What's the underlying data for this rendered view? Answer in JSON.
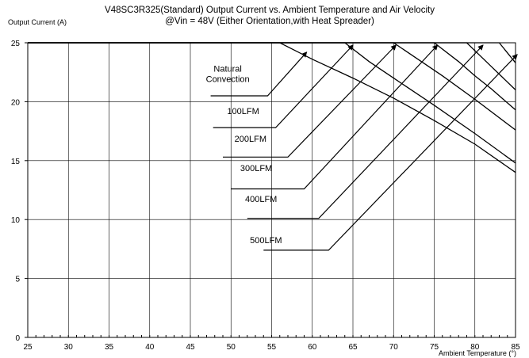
{
  "chart_data": {
    "type": "line",
    "title": "V48SC3R325(Standard) Output Current vs. Ambient Temperature and Air Velocity",
    "subtitle": "@Vin = 48V (Either Orientation,with Heat Spreader)",
    "ylabel": "Output Current (A)",
    "xlabel": "Ambient Temperature (°)",
    "xlim": [
      25,
      85
    ],
    "ylim": [
      0,
      25
    ],
    "xticks": [
      "25",
      "30",
      "35",
      "40",
      "45",
      "50",
      "55",
      "60",
      "65",
      "70",
      "75",
      "80",
      "85"
    ],
    "yticks": [
      "0",
      "5",
      "10",
      "15",
      "20",
      "25"
    ],
    "grid": true,
    "series": [
      {
        "name": "Natural Convection",
        "x": [
          25,
          56,
          60,
          65,
          70,
          75,
          80,
          85
        ],
        "y": [
          25,
          25,
          23.6,
          22.0,
          20.3,
          18.4,
          16.4,
          14.0
        ]
      },
      {
        "name": "100LFM",
        "x": [
          25,
          64,
          67,
          70,
          75,
          80,
          85
        ],
        "y": [
          25,
          25,
          23.4,
          22.0,
          19.7,
          17.3,
          14.8
        ]
      },
      {
        "name": "200LFM",
        "x": [
          25,
          70,
          73,
          76,
          80,
          85
        ],
        "y": [
          25,
          25,
          23.6,
          22.2,
          20.2,
          17.6
        ]
      },
      {
        "name": "300LFM",
        "x": [
          25,
          75,
          78,
          80,
          82,
          85
        ],
        "y": [
          25,
          25,
          23.4,
          22.2,
          21.1,
          19.3
        ]
      },
      {
        "name": "400LFM",
        "x": [
          25,
          79,
          82,
          85
        ],
        "y": [
          25,
          25,
          23.0,
          21.0
        ]
      },
      {
        "name": "500LFM",
        "x": [
          25,
          83,
          85
        ],
        "y": [
          25,
          25,
          23.3
        ]
      }
    ],
    "annotations": [
      {
        "lines": [
          "Natural",
          "Convection"
        ],
        "text_at": [
          49.6,
          22.55
        ],
        "leader": [
          [
            47.5,
            20.5
          ],
          [
            54.5,
            20.5
          ],
          [
            59.3,
            24.2
          ]
        ]
      },
      {
        "text": "100LFM",
        "text_at": [
          51.5,
          18.95
        ],
        "leader": [
          [
            47.8,
            17.8
          ],
          [
            55.5,
            17.8
          ],
          [
            65.0,
            24.8
          ]
        ]
      },
      {
        "text": "200LFM",
        "text_at": [
          52.4,
          16.6
        ],
        "leader": [
          [
            49.0,
            15.3
          ],
          [
            57.0,
            15.3
          ],
          [
            70.3,
            24.8
          ]
        ]
      },
      {
        "text": "300LFM",
        "text_at": [
          53.1,
          14.1
        ],
        "leader": [
          [
            50.0,
            12.6
          ],
          [
            59.0,
            12.6
          ],
          [
            75.4,
            24.8
          ]
        ]
      },
      {
        "text": "400LFM",
        "text_at": [
          53.7,
          11.5
        ],
        "leader": [
          [
            52.0,
            10.1
          ],
          [
            60.8,
            10.1
          ],
          [
            81.0,
            24.8
          ]
        ]
      },
      {
        "text": "500LFM",
        "text_at": [
          54.3,
          8.0
        ],
        "leader": [
          [
            54.0,
            7.4
          ],
          [
            62.0,
            7.4
          ],
          [
            85.2,
            24.0
          ]
        ]
      }
    ]
  }
}
